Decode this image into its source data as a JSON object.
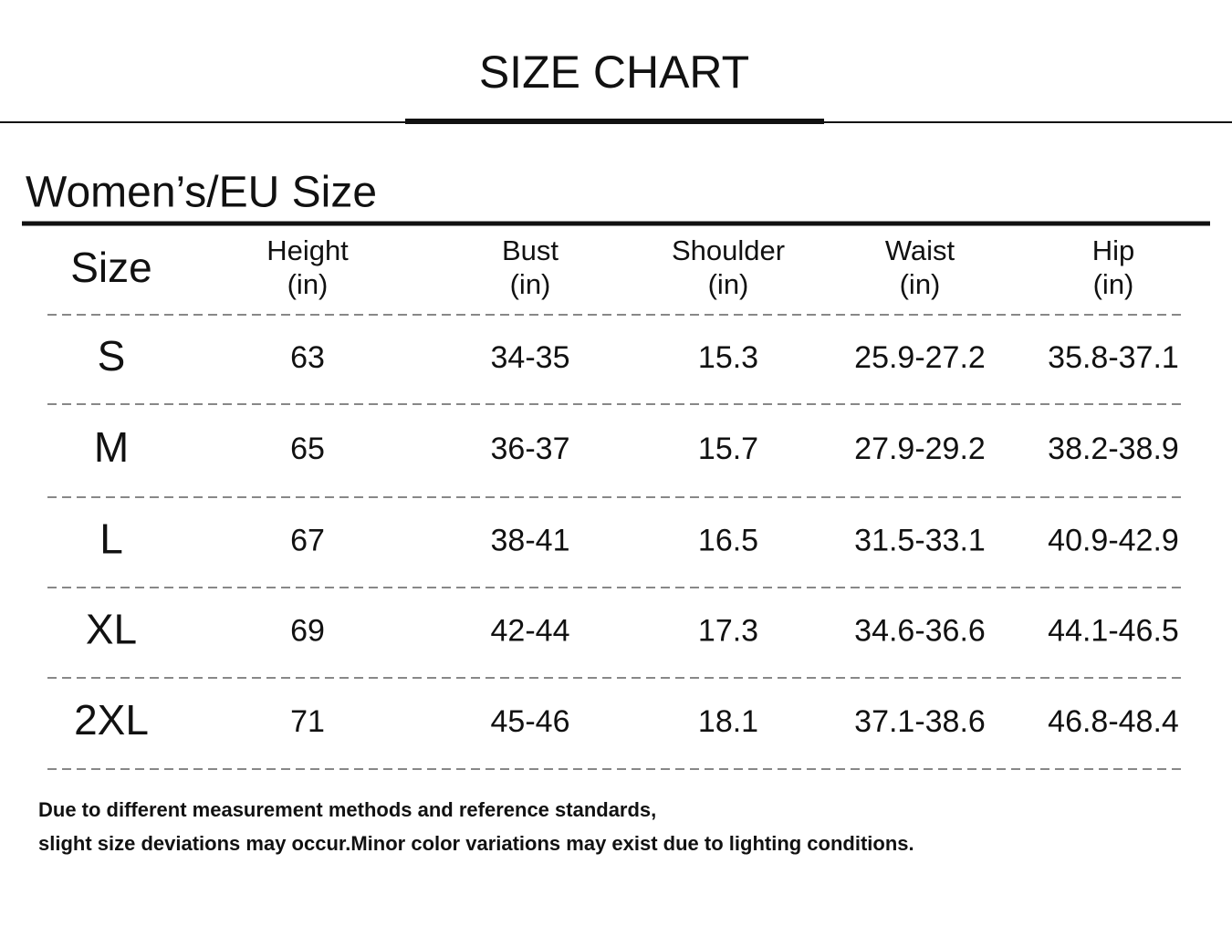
{
  "title": "SIZE CHART",
  "subtitle": "Women’s/EU Size",
  "table": {
    "columns": [
      {
        "name": "Size"
      },
      {
        "name": "Height",
        "unit": "(in)"
      },
      {
        "name": "Bust",
        "unit": "(in)"
      },
      {
        "name": "Shoulder",
        "unit": "(in)"
      },
      {
        "name": "Waist",
        "unit": "(in)"
      },
      {
        "name": "Hip",
        "unit": "(in)"
      }
    ],
    "rows": [
      [
        "S",
        "63",
        "34-35",
        "15.3",
        "25.9-27.2",
        "35.8-37.1"
      ],
      [
        "M",
        "65",
        "36-37",
        "15.7",
        "27.9-29.2",
        "38.2-38.9"
      ],
      [
        "L",
        "67",
        "38-41",
        "16.5",
        "31.5-33.1",
        "40.9-42.9"
      ],
      [
        "XL",
        "69",
        "42-44",
        "17.3",
        "34.6-36.6",
        "44.1-46.5"
      ],
      [
        "2XL",
        "71",
        "45-46",
        "18.1",
        "37.1-38.6",
        "46.8-48.4"
      ]
    ]
  },
  "notes": [
    "Due to different measurement methods and reference standards,",
    "slight size deviations may occur.Minor color variations may exist due to lighting conditions."
  ]
}
